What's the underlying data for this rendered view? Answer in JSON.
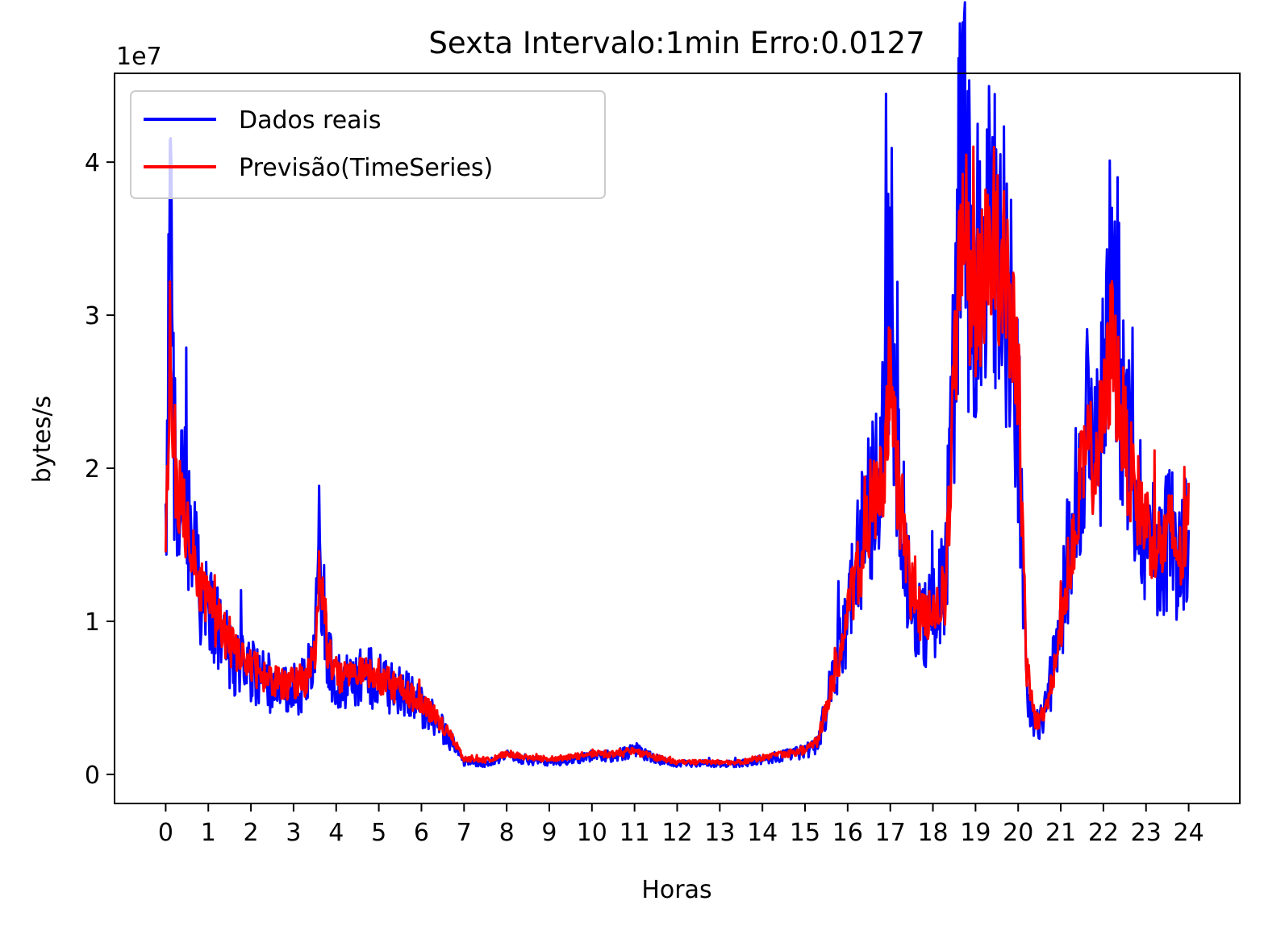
{
  "chart_data": {
    "type": "line",
    "title": "Sexta Intervalo:1min Erro:0.0127",
    "xlabel": "Horas",
    "ylabel": "bytes/s",
    "y_scale_label": "1e7",
    "y_multiplier": 10000000,
    "xlim": [
      -1.2,
      25.2
    ],
    "ylim": [
      -0.19,
      4.58
    ],
    "x_ticks": [
      0,
      1,
      2,
      3,
      4,
      5,
      6,
      7,
      8,
      9,
      10,
      11,
      12,
      13,
      14,
      15,
      16,
      17,
      18,
      19,
      20,
      21,
      22,
      23,
      24
    ],
    "x_tick_labels": [
      "0",
      "1",
      "2",
      "3",
      "4",
      "5",
      "6",
      "7",
      "8",
      "9",
      "10",
      "11",
      "12",
      "13",
      "14",
      "15",
      "16",
      "17",
      "18",
      "19",
      "20",
      "21",
      "22",
      "23",
      "24"
    ],
    "y_ticks": [
      0,
      1,
      2,
      3,
      4
    ],
    "y_tick_labels": [
      "0",
      "1",
      "2",
      "3",
      "4"
    ],
    "grid": false,
    "legend_position": "upper-left",
    "series": [
      {
        "name": "Dados reais",
        "color": "#0000ff",
        "x": [
          0,
          0.1,
          0.2,
          0.3,
          0.45,
          0.6,
          0.8,
          1.0,
          1.2,
          1.4,
          1.6,
          1.8,
          2.0,
          2.2,
          2.5,
          2.8,
          3.0,
          3.3,
          3.5,
          3.6,
          3.8,
          4.0,
          4.3,
          4.6,
          5.0,
          5.3,
          5.6,
          6.0,
          6.3,
          6.6,
          6.8,
          7.0,
          7.5,
          8.0,
          8.5,
          9.0,
          9.5,
          10.0,
          10.5,
          11.0,
          11.5,
          12.0,
          12.5,
          13.0,
          13.5,
          14.0,
          14.5,
          15.0,
          15.3,
          15.6,
          15.9,
          16.2,
          16.5,
          16.8,
          17.0,
          17.2,
          17.5,
          17.8,
          18.0,
          18.3,
          18.5,
          18.7,
          18.9,
          19.1,
          19.3,
          19.5,
          19.7,
          19.9,
          20.0,
          20.2,
          20.4,
          20.6,
          20.8,
          21.0,
          21.2,
          21.4,
          21.6,
          21.8,
          22.0,
          22.2,
          22.4,
          22.6,
          22.8,
          23.0,
          23.2,
          23.4,
          23.6,
          23.8,
          24.0
        ],
        "values": [
          1.45,
          3.47,
          2.2,
          1.7,
          1.85,
          1.45,
          1.25,
          1.05,
          0.95,
          0.85,
          0.75,
          0.7,
          0.68,
          0.62,
          0.58,
          0.55,
          0.56,
          0.6,
          0.85,
          1.45,
          0.75,
          0.62,
          0.6,
          0.64,
          0.62,
          0.55,
          0.52,
          0.44,
          0.38,
          0.25,
          0.18,
          0.08,
          0.07,
          0.12,
          0.09,
          0.08,
          0.09,
          0.12,
          0.12,
          0.16,
          0.1,
          0.07,
          0.07,
          0.07,
          0.07,
          0.1,
          0.12,
          0.15,
          0.2,
          0.55,
          0.95,
          1.35,
          1.7,
          1.95,
          3.36,
          1.85,
          1.15,
          0.95,
          1.05,
          1.25,
          2.8,
          4.36,
          3.0,
          3.3,
          3.4,
          3.6,
          3.3,
          2.7,
          2.4,
          0.5,
          0.3,
          0.38,
          0.65,
          1.0,
          1.5,
          1.9,
          2.3,
          2.1,
          2.4,
          3.68,
          2.6,
          2.1,
          1.8,
          1.6,
          1.45,
          1.5,
          1.6,
          1.4,
          1.55
        ]
      },
      {
        "name": "Previsão(TimeSeries)",
        "color": "#ff0000",
        "x": [
          0,
          0.1,
          0.2,
          0.3,
          0.45,
          0.6,
          0.8,
          1.0,
          1.2,
          1.4,
          1.6,
          1.8,
          2.0,
          2.2,
          2.5,
          2.8,
          3.0,
          3.3,
          3.5,
          3.6,
          3.8,
          4.0,
          4.3,
          4.6,
          5.0,
          5.3,
          5.6,
          6.0,
          6.3,
          6.6,
          6.8,
          7.0,
          7.5,
          8.0,
          8.5,
          9.0,
          9.5,
          10.0,
          10.5,
          11.0,
          11.5,
          12.0,
          12.5,
          13.0,
          13.5,
          14.0,
          14.5,
          15.0,
          15.3,
          15.6,
          15.9,
          16.2,
          16.5,
          16.8,
          17.0,
          17.2,
          17.5,
          17.8,
          18.0,
          18.3,
          18.5,
          18.7,
          18.9,
          19.1,
          19.3,
          19.5,
          19.7,
          19.9,
          20.0,
          20.2,
          20.4,
          20.6,
          20.8,
          21.0,
          21.2,
          21.4,
          21.6,
          21.8,
          22.0,
          22.2,
          22.4,
          22.6,
          22.8,
          23.0,
          23.2,
          23.4,
          23.6,
          23.8,
          24.0
        ],
        "values": [
          1.32,
          2.85,
          2.1,
          1.8,
          1.75,
          1.5,
          1.3,
          1.1,
          1.0,
          0.9,
          0.8,
          0.75,
          0.72,
          0.66,
          0.62,
          0.58,
          0.6,
          0.62,
          0.8,
          1.35,
          0.8,
          0.66,
          0.62,
          0.65,
          0.64,
          0.58,
          0.54,
          0.46,
          0.4,
          0.28,
          0.2,
          0.1,
          0.09,
          0.14,
          0.11,
          0.1,
          0.11,
          0.14,
          0.13,
          0.15,
          0.11,
          0.08,
          0.08,
          0.08,
          0.08,
          0.11,
          0.13,
          0.16,
          0.22,
          0.55,
          0.9,
          1.3,
          1.6,
          1.9,
          2.62,
          1.8,
          1.2,
          1.0,
          1.05,
          1.2,
          2.6,
          3.78,
          3.0,
          3.2,
          3.3,
          3.45,
          3.2,
          2.8,
          2.6,
          0.7,
          0.35,
          0.38,
          0.6,
          0.95,
          1.4,
          1.8,
          2.1,
          2.05,
          2.3,
          2.85,
          2.4,
          2.0,
          1.8,
          1.65,
          1.5,
          1.5,
          1.6,
          1.4,
          1.62
        ]
      }
    ]
  }
}
